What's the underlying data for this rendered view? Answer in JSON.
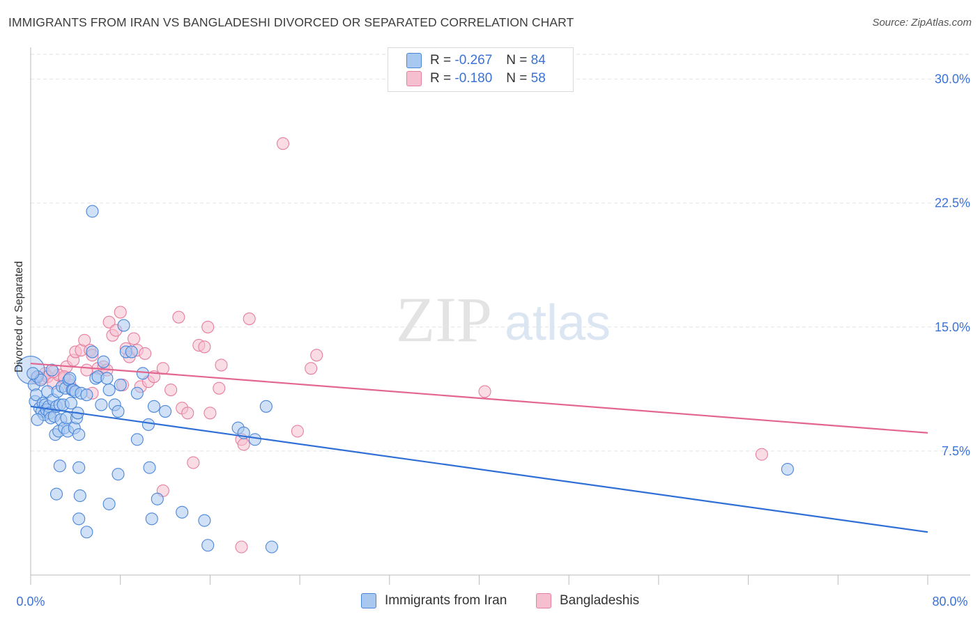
{
  "title": "IMMIGRANTS FROM IRAN VS BANGLADESHI DIVORCED OR SEPARATED CORRELATION CHART",
  "source": "Source: ZipAtlas.com",
  "watermark_zip": "ZIP",
  "watermark_atlas": "atlas",
  "legend": {
    "r_label": "R =",
    "n_label": "N =",
    "iran_r": "-0.267",
    "iran_n": "84",
    "bang_r": "-0.180",
    "bang_n": "58"
  },
  "colors": {
    "iran_fill": "#a9c8f0",
    "iran_stroke": "#4a86d8",
    "iran_line": "#2f6fd6",
    "bang_fill": "#f6bfd0",
    "bang_stroke": "#e57fa0",
    "bang_line": "#e2668f",
    "axis_text": "#3a72d6"
  },
  "chart_data": {
    "type": "scatter",
    "title": "IMMIGRANTS FROM IRAN VS BANGLADESHI DIVORCED OR SEPARATED CORRELATION CHART",
    "xlabel": "",
    "ylabel": "Divorced or Separated",
    "xlim": [
      0,
      80
    ],
    "ylim": [
      0,
      31.5
    ],
    "x_tick_labels": [
      "0.0%",
      "80.0%"
    ],
    "y_ticks": [
      7.5,
      15.0,
      22.5,
      30.0
    ],
    "y_tick_labels": [
      "7.5%",
      "15.0%",
      "22.5%",
      "30.0%"
    ],
    "grid": "horizontal dashed",
    "series": [
      {
        "name": "Immigrants from Iran",
        "trend": [
          [
            0,
            10.2
          ],
          [
            80,
            2.6
          ]
        ],
        "points": [
          [
            0.3,
            11.5
          ],
          [
            0.4,
            10.5
          ],
          [
            0.5,
            10.9
          ],
          [
            0.6,
            12.0
          ],
          [
            0.8,
            10.1
          ],
          [
            0.9,
            11.8
          ],
          [
            1.0,
            9.9
          ],
          [
            1.1,
            10.4
          ],
          [
            1.2,
            9.7
          ],
          [
            1.3,
            10.3
          ],
          [
            1.4,
            10.0
          ],
          [
            1.5,
            11.1
          ],
          [
            1.6,
            10.2
          ],
          [
            1.7,
            9.8
          ],
          [
            1.8,
            9.5
          ],
          [
            1.9,
            12.4
          ],
          [
            2.0,
            10.6
          ],
          [
            2.1,
            9.6
          ],
          [
            2.2,
            8.5
          ],
          [
            2.3,
            10.2
          ],
          [
            2.4,
            11.1
          ],
          [
            2.5,
            8.7
          ],
          [
            2.6,
            10.3
          ],
          [
            2.7,
            9.4
          ],
          [
            2.8,
            11.4
          ],
          [
            2.9,
            10.3
          ],
          [
            3.0,
            8.9
          ],
          [
            3.1,
            11.3
          ],
          [
            3.2,
            9.5
          ],
          [
            3.3,
            8.7
          ],
          [
            3.4,
            11.8
          ],
          [
            3.5,
            11.9
          ],
          [
            3.6,
            10.4
          ],
          [
            3.7,
            11.2
          ],
          [
            3.8,
            11.2
          ],
          [
            3.9,
            8.9
          ],
          [
            4.0,
            11.1
          ],
          [
            4.1,
            9.5
          ],
          [
            4.2,
            9.8
          ],
          [
            4.3,
            8.5
          ],
          [
            4.5,
            11.0
          ],
          [
            5.0,
            10.9
          ],
          [
            5.5,
            13.5
          ],
          [
            5.8,
            11.9
          ],
          [
            6.0,
            12.0
          ],
          [
            6.3,
            10.3
          ],
          [
            6.5,
            12.9
          ],
          [
            6.8,
            11.9
          ],
          [
            7.0,
            11.2
          ],
          [
            7.5,
            10.3
          ],
          [
            7.8,
            9.9
          ],
          [
            8.0,
            11.5
          ],
          [
            8.3,
            15.1
          ],
          [
            8.5,
            13.5
          ],
          [
            9.0,
            13.5
          ],
          [
            9.5,
            11.0
          ],
          [
            10.0,
            12.2
          ],
          [
            10.5,
            9.1
          ],
          [
            11.0,
            10.2
          ],
          [
            12.0,
            9.9
          ],
          [
            18.5,
            8.9
          ],
          [
            19.0,
            8.6
          ],
          [
            20.0,
            8.2
          ],
          [
            21.0,
            10.2
          ],
          [
            5.5,
            22.0
          ],
          [
            2.6,
            6.6
          ],
          [
            4.3,
            6.5
          ],
          [
            7.8,
            6.1
          ],
          [
            10.6,
            6.5
          ],
          [
            9.5,
            8.2
          ],
          [
            2.3,
            4.9
          ],
          [
            4.4,
            4.8
          ],
          [
            7.0,
            4.3
          ],
          [
            11.3,
            4.6
          ],
          [
            4.3,
            3.4
          ],
          [
            10.8,
            3.4
          ],
          [
            13.5,
            3.8
          ],
          [
            15.5,
            3.3
          ],
          [
            5.0,
            2.6
          ],
          [
            15.8,
            1.8
          ],
          [
            21.5,
            1.7
          ],
          [
            67.5,
            6.4
          ],
          [
            0.2,
            12.2
          ],
          [
            0.6,
            9.4
          ]
        ],
        "bubble": [
          0.0,
          12.4
        ]
      },
      {
        "name": "Bangladeshis",
        "trend": [
          [
            0,
            12.8
          ],
          [
            80,
            8.6
          ]
        ],
        "points": [
          [
            0.5,
            11.9
          ],
          [
            1.0,
            11.9
          ],
          [
            1.3,
            12.2
          ],
          [
            1.5,
            12.0
          ],
          [
            2.0,
            11.6
          ],
          [
            2.5,
            12.1
          ],
          [
            3.0,
            11.9
          ],
          [
            3.2,
            12.6
          ],
          [
            3.5,
            11.5
          ],
          [
            3.8,
            13.0
          ],
          [
            4.0,
            13.5
          ],
          [
            4.5,
            13.6
          ],
          [
            4.8,
            14.2
          ],
          [
            5.0,
            12.4
          ],
          [
            5.3,
            13.6
          ],
          [
            5.5,
            13.3
          ],
          [
            6.0,
            12.5
          ],
          [
            6.5,
            12.6
          ],
          [
            7.0,
            15.3
          ],
          [
            7.3,
            14.5
          ],
          [
            7.6,
            14.8
          ],
          [
            8.0,
            15.9
          ],
          [
            8.5,
            13.7
          ],
          [
            8.8,
            13.2
          ],
          [
            9.2,
            14.3
          ],
          [
            9.5,
            13.6
          ],
          [
            9.8,
            11.4
          ],
          [
            10.2,
            13.4
          ],
          [
            10.5,
            11.7
          ],
          [
            11.0,
            12.0
          ],
          [
            11.8,
            12.5
          ],
          [
            12.5,
            11.2
          ],
          [
            13.2,
            15.6
          ],
          [
            13.5,
            10.1
          ],
          [
            14.0,
            9.8
          ],
          [
            15.0,
            13.9
          ],
          [
            15.5,
            13.8
          ],
          [
            15.8,
            15.0
          ],
          [
            16.8,
            11.3
          ],
          [
            17.0,
            12.7
          ],
          [
            18.8,
            8.2
          ],
          [
            19.0,
            7.9
          ],
          [
            19.5,
            15.5
          ],
          [
            22.5,
            26.1
          ],
          [
            23.8,
            8.7
          ],
          [
            25.0,
            12.5
          ],
          [
            25.5,
            13.3
          ],
          [
            40.5,
            11.1
          ],
          [
            65.2,
            7.3
          ],
          [
            14.5,
            6.8
          ],
          [
            11.8,
            5.1
          ],
          [
            18.8,
            1.7
          ],
          [
            2.0,
            12.3
          ],
          [
            3.0,
            12.0
          ],
          [
            6.8,
            12.4
          ],
          [
            8.2,
            11.5
          ],
          [
            5.5,
            11.0
          ],
          [
            16.0,
            9.8
          ]
        ],
        "bubble": null
      }
    ]
  }
}
